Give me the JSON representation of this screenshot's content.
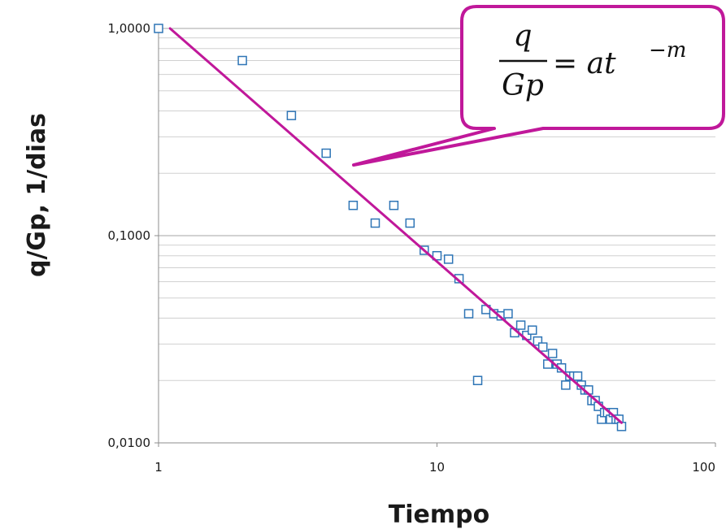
{
  "chart_data": {
    "type": "scatter",
    "xscale": "log",
    "yscale": "log",
    "xlim": [
      1,
      100
    ],
    "ylim": [
      0.01,
      1
    ],
    "x_tick_labels": [
      "1",
      "10",
      "100"
    ],
    "y_tick_labels": [
      "1,0000",
      "0,1000",
      "0,0100"
    ],
    "xlabel": "Tiempo",
    "ylabel": "q/Gp, 1/dias",
    "grid": "horizontal major and minor",
    "marker": "hollow-square",
    "marker_color": "#2e75b6",
    "trendline_color": "#c0189a",
    "series": [
      {
        "x": [
          1,
          2,
          3,
          4,
          5,
          6,
          7,
          8,
          9,
          10,
          11,
          12,
          13,
          14,
          15,
          16,
          17,
          18,
          19,
          20,
          21,
          22,
          23,
          24,
          25,
          26,
          27,
          28,
          29,
          30,
          31,
          32,
          33,
          34,
          35,
          36,
          37,
          38,
          39,
          40,
          41,
          42,
          43,
          44,
          45,
          46
        ],
        "y": [
          1.0,
          0.7,
          0.38,
          0.25,
          0.14,
          0.115,
          0.14,
          0.115,
          0.085,
          0.08,
          0.077,
          0.062,
          0.042,
          0.02,
          0.044,
          0.042,
          0.041,
          0.042,
          0.034,
          0.037,
          0.033,
          0.035,
          0.031,
          0.029,
          0.024,
          0.027,
          0.024,
          0.023,
          0.019,
          0.021,
          0.021,
          0.021,
          0.019,
          0.018,
          0.018,
          0.016,
          0.016,
          0.015,
          0.013,
          0.014,
          0.014,
          0.013,
          0.014,
          0.013,
          0.013,
          0.012
        ]
      }
    ],
    "trendline": {
      "x": [
        1.1,
        46
      ],
      "y": [
        1.0,
        0.0125
      ]
    },
    "annotation": {
      "numerator": "q",
      "denominator": "Gp",
      "rhs": "= at",
      "exponent": "−m"
    }
  }
}
